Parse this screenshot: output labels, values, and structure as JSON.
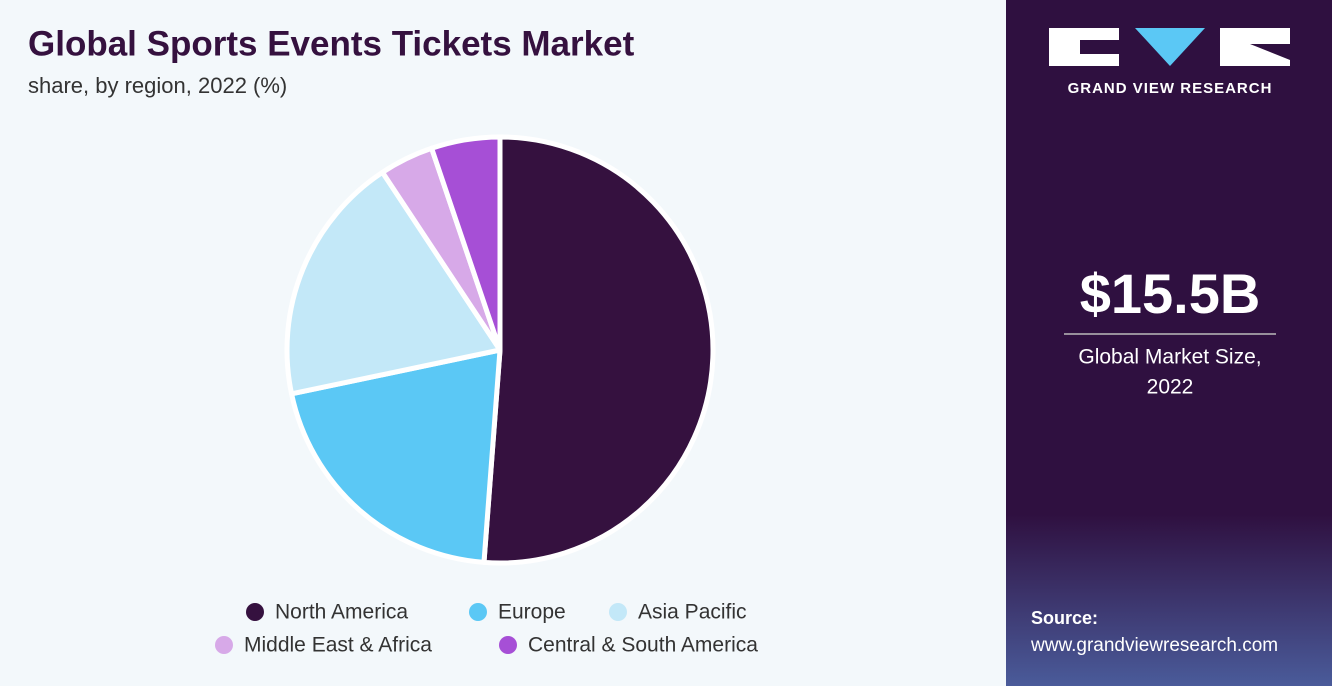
{
  "chart_data": {
    "type": "pie",
    "title": "Global Sports Events Tickets Market",
    "subtitle": "share, by region, 2022 (%)",
    "categories": [
      "North America",
      "Europe",
      "Asia Pacific",
      "Middle East & Africa",
      "Central & South America"
    ],
    "values": [
      51.2,
      20.5,
      19.0,
      4.1,
      5.2
    ],
    "colors": [
      "#35113f",
      "#5bc8f5",
      "#c3e8f8",
      "#d7a9e8",
      "#a64fd6"
    ]
  },
  "sidebar": {
    "brand": "GRAND VIEW RESEARCH",
    "market_size": "$15.5B",
    "market_size_label_1": "Global Market Size,",
    "market_size_label_2": "2022",
    "source_label": "Source:",
    "source_url": "www.grandviewresearch.com"
  }
}
